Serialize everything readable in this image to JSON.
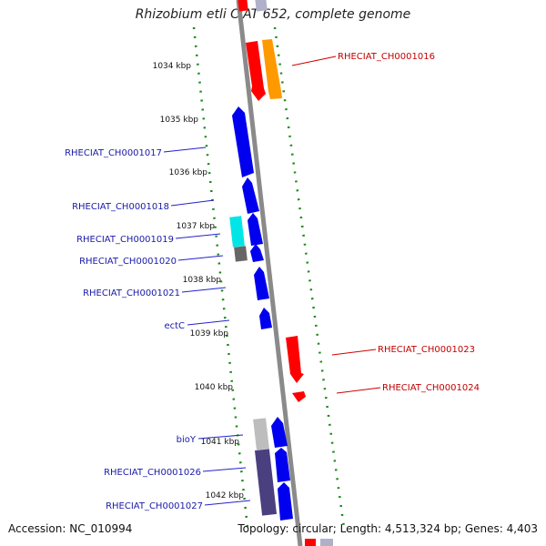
{
  "title": "Rhizobium etli CIAT 652, complete genome",
  "footer": {
    "accession": "Accession: NC_010994",
    "summary": "Topology: circular; Length: 4,513,324 bp; Genes: 4,403"
  },
  "ticks": [
    "1034 kbp",
    "1035 kbp",
    "1036 kbp",
    "1037 kbp",
    "1038 kbp",
    "1039 kbp",
    "1040 kbp",
    "1041 kbp",
    "1042 kbp"
  ],
  "gene_labels": {
    "left": [
      "RHECIAT_CH0001017",
      "RHECIAT_CH0001018",
      "RHECIAT_CH0001019",
      "RHECIAT_CH0001020",
      "RHECIAT_CH0001021",
      "ectC",
      "bioY",
      "RHECIAT_CH0001026",
      "RHECIAT_CH0001027"
    ],
    "right": [
      "RHECIAT_CH0001016",
      "RHECIAT_CH0001023",
      "RHECIAT_CH0001024"
    ]
  },
  "colors": {
    "backbone": "#8a8a8a",
    "cds": "#0000ee",
    "gene_forward": "#ff0000",
    "gene_orange": "#ff9900",
    "misc": "#00e5e5",
    "grey_feature": "#666666",
    "light_grey_feature": "#bdbdbd",
    "dark_purple_feature": "#4a4080",
    "gc_dots": "#1a8a1a",
    "label_blue": "#1a1aa8",
    "label_red": "#c40000"
  }
}
